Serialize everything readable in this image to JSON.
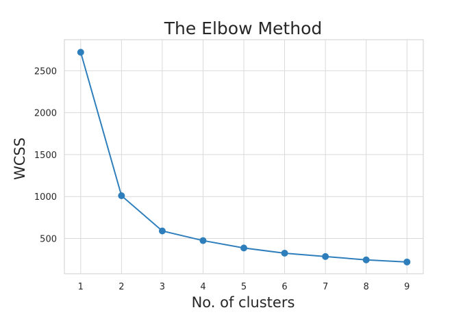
{
  "chart_data": {
    "type": "line",
    "title": "The Elbow Method",
    "xlabel": "No. of clusters",
    "ylabel": "WCSS",
    "x": [
      1,
      2,
      3,
      4,
      5,
      6,
      7,
      8,
      9
    ],
    "series": [
      {
        "values": [
          2720,
          1010,
          590,
          475,
          387,
          325,
          285,
          245,
          220
        ]
      }
    ],
    "xticks": [
      1,
      2,
      3,
      4,
      5,
      6,
      7,
      8,
      9
    ],
    "yticks": [
      500,
      1000,
      1500,
      2000,
      2500
    ],
    "xlim": [
      0.6,
      9.4
    ],
    "ylim": [
      80,
      2870
    ],
    "grid": true,
    "marker": "circle",
    "color": "#2e7ebc"
  }
}
